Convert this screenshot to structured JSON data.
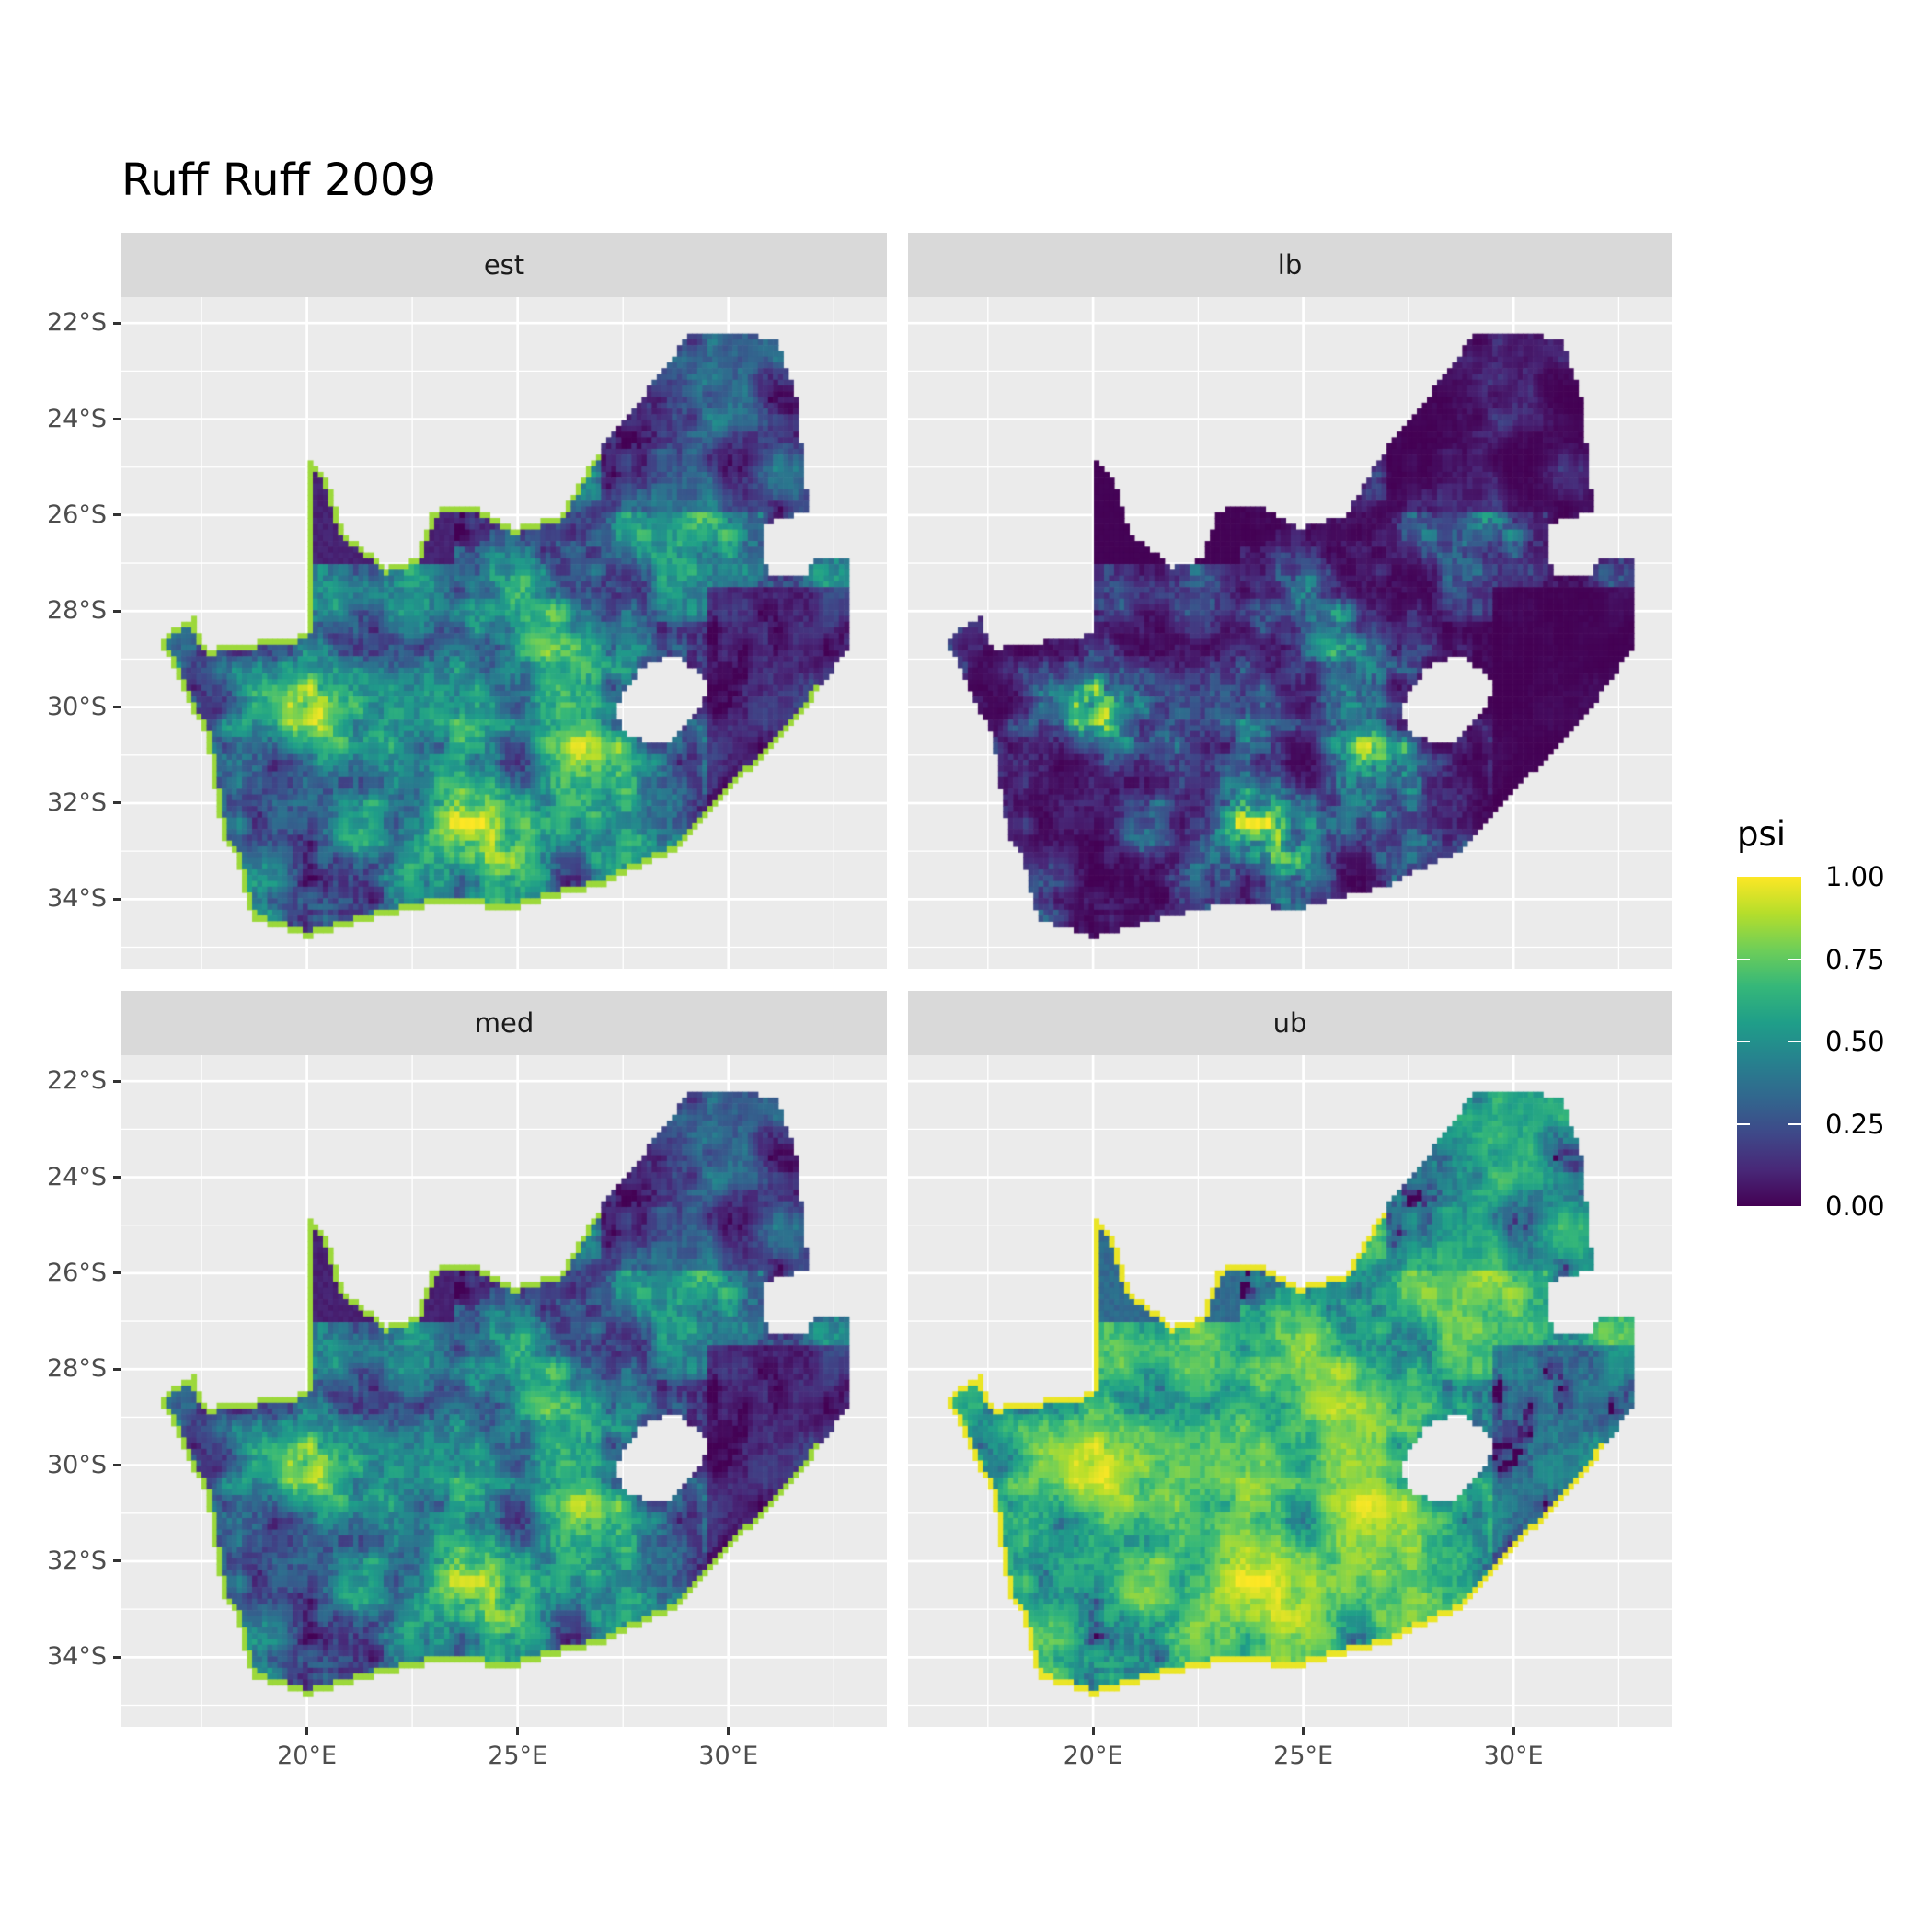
{
  "chart_data": {
    "type": "heatmap",
    "title": "Ruff Ruff 2009",
    "facets": [
      "est",
      "lb",
      "med",
      "ub"
    ],
    "x_ticks": [
      "20°E",
      "25°E",
      "30°E"
    ],
    "x_tick_values": [
      20,
      25,
      30
    ],
    "y_ticks": [
      "22°S",
      "24°S",
      "26°S",
      "28°S",
      "30°S",
      "32°S",
      "34°S"
    ],
    "y_tick_values": [
      -22,
      -24,
      -26,
      -28,
      -30,
      -32,
      -34
    ],
    "xlim": [
      15.6,
      33.76
    ],
    "ylim": [
      -35.45,
      -21.46
    ],
    "grid": true,
    "legend": {
      "title": "psi",
      "placement": "right",
      "colormap": "viridis",
      "range": [
        0,
        1
      ],
      "labels": [
        "1.00",
        "0.75",
        "0.50",
        "0.25",
        "0.00"
      ],
      "values": [
        1,
        0.75,
        0.5,
        0.25,
        0
      ]
    },
    "facet_mean_level": {
      "est": 0.38,
      "lb": 0.18,
      "med": 0.36,
      "ub": 0.62
    }
  }
}
